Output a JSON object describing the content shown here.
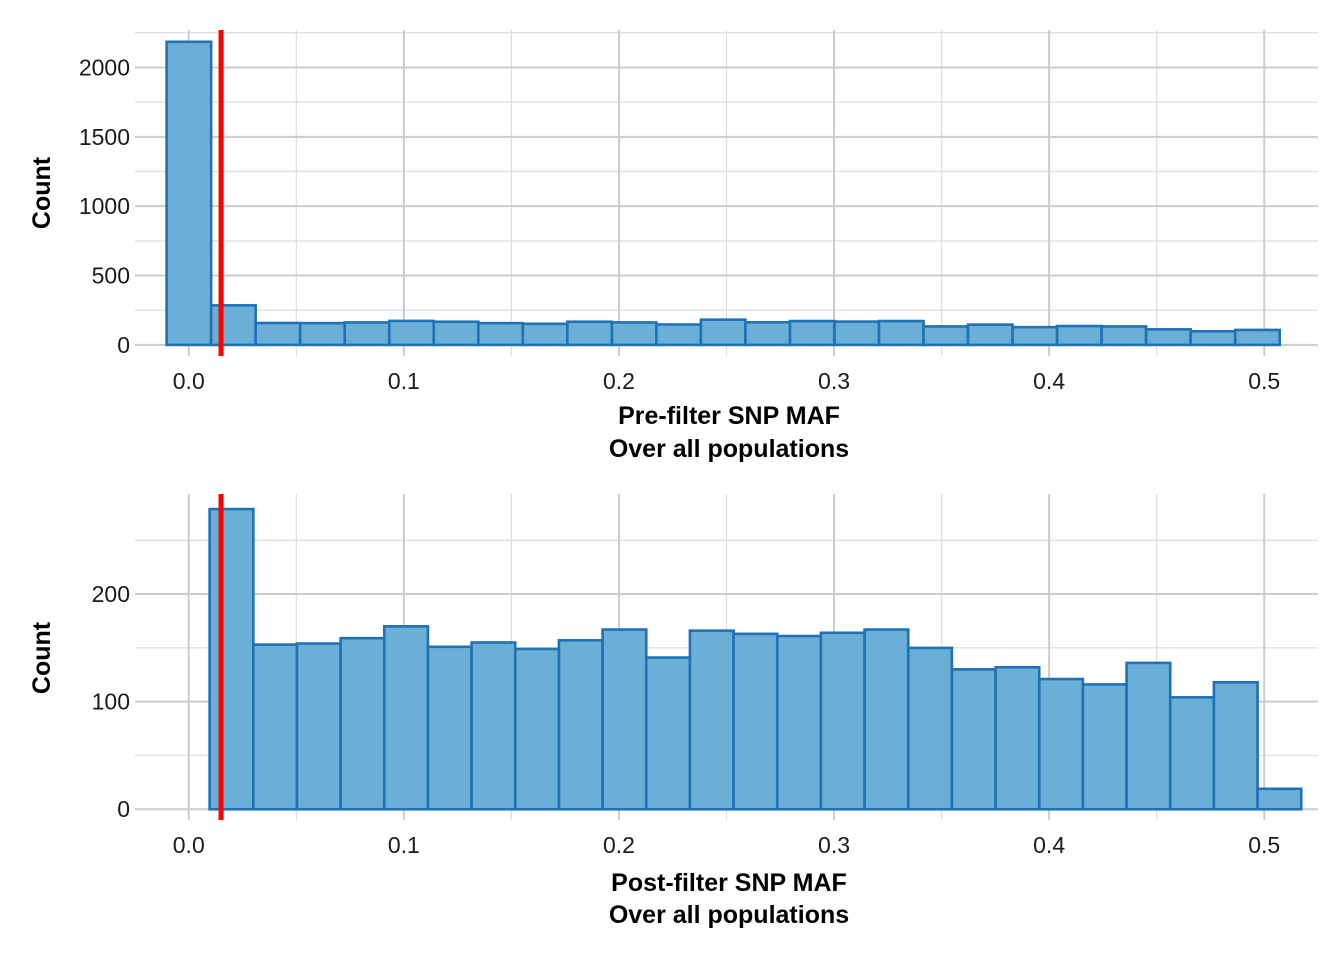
{
  "chart_data": [
    {
      "type": "bar",
      "subtype": "histogram",
      "xlabel": "Pre-filter SNP MAF",
      "xlabel_line2": "Over all populations",
      "ylabel": "Count",
      "xlim": [
        -0.025,
        0.525
      ],
      "ylim": [
        -80,
        2270
      ],
      "x_ticks": [
        0.0,
        0.1,
        0.2,
        0.3,
        0.4,
        0.5
      ],
      "x_tick_labels": [
        "0.0",
        "0.1",
        "0.2",
        "0.3",
        "0.4",
        "0.5"
      ],
      "y_ticks": [
        0,
        500,
        1000,
        1500,
        2000
      ],
      "y_tick_labels": [
        "0",
        "500",
        "1000",
        "1500",
        "2000"
      ],
      "bin_start": -0.0103,
      "bin_width": 0.0207,
      "values": [
        2185,
        285,
        158,
        157,
        162,
        173,
        167,
        157,
        152,
        167,
        162,
        147,
        182,
        163,
        172,
        168,
        172,
        133,
        146,
        128,
        136,
        133,
        112,
        98,
        108
      ],
      "threshold": 0.015,
      "grid": true
    },
    {
      "type": "bar",
      "subtype": "histogram",
      "xlabel": "Post-filter SNP MAF",
      "xlabel_line2": "Over all populations",
      "ylabel": "Count",
      "xlim": [
        -0.025,
        0.525
      ],
      "ylim": [
        -10,
        293
      ],
      "x_ticks": [
        0.0,
        0.1,
        0.2,
        0.3,
        0.4,
        0.5
      ],
      "x_tick_labels": [
        "0.0",
        "0.1",
        "0.2",
        "0.3",
        "0.4",
        "0.5"
      ],
      "y_ticks": [
        0,
        100,
        200
      ],
      "y_tick_labels": [
        "0",
        "100",
        "200"
      ],
      "bin_start": 0.0097,
      "bin_width": 0.0203,
      "values": [
        279,
        153,
        154,
        159,
        170,
        151,
        155,
        149,
        157,
        167,
        141,
        166,
        163,
        161,
        164,
        167,
        150,
        130,
        132,
        121,
        116,
        136,
        104,
        118,
        19
      ],
      "threshold": 0.015,
      "grid": true
    }
  ],
  "colors": {
    "bar_fill": "#6baed6",
    "bar_outline": "#2171b5",
    "threshold_line": "#ff0000",
    "grid": "#cccccc"
  }
}
